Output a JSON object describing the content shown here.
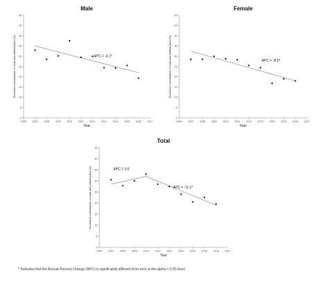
{
  "chart_data": [
    {
      "type": "scatter",
      "title": "Male",
      "xlabel": "Year",
      "ylabel": "Excessive consumption of soda and artificial juice (%)",
      "xlim": [
        2006,
        2017
      ],
      "ylim": [
        0,
        50
      ],
      "xticks": [
        "2006",
        "2007",
        "2008",
        "2009",
        "2010",
        "2011",
        "2012",
        "2013",
        "2014",
        "2015",
        "2016",
        "2017"
      ],
      "yticks": [
        "0",
        "5",
        "10",
        "15",
        "20",
        "25",
        "30",
        "35",
        "40",
        "45",
        "50"
      ],
      "points": {
        "x": [
          2007,
          2008,
          2009,
          2010,
          2011,
          2012,
          2013,
          2014,
          2015,
          2016
        ],
        "y": [
          33.0,
          28.5,
          30.2,
          37.5,
          29.5,
          30.0,
          24.5,
          24.3,
          25.5,
          19.3
        ]
      },
      "trend": {
        "x": [
          2007,
          2016
        ],
        "y": [
          35.0,
          22.0
        ]
      },
      "annotations": [
        {
          "text": "APC = -6.1*",
          "x": 2012.1,
          "y": 29.6
        }
      ],
      "grid": false
    },
    {
      "type": "scatter",
      "title": "Female",
      "xlabel": "Year",
      "ylabel": "Excessive consumption of soda and artificial juice (%)",
      "xlim": [
        2006,
        2017
      ],
      "ylim": [
        0,
        50
      ],
      "xticks": [
        "2006",
        "2007",
        "2008",
        "2009",
        "2010",
        "2011",
        "2012",
        "2013",
        "2014",
        "2015",
        "2016",
        "2017"
      ],
      "yticks": [
        "0",
        "5",
        "10",
        "15",
        "20",
        "25",
        "30",
        "35",
        "40",
        "45",
        "50"
      ],
      "points": {
        "x": [
          2007,
          2008,
          2009,
          2010,
          2011,
          2012,
          2013,
          2014,
          2015,
          2016
        ],
        "y": [
          28.5,
          28.5,
          30.0,
          28.8,
          28.3,
          25.5,
          24.5,
          16.8,
          19.0,
          18.0
        ]
      },
      "trend": {
        "x": [
          2007,
          2016
        ],
        "y": [
          32.5,
          18.0
        ]
      },
      "annotations": [
        {
          "text": "APC = -8.5*",
          "x": 2013.1,
          "y": 27.4
        }
      ],
      "grid": false
    },
    {
      "type": "scatter",
      "title": "Total",
      "xlabel": "Year",
      "ylabel": "Excessive consumption of soda and artificial juice (%)",
      "xlim": [
        2006,
        2017
      ],
      "ylim": [
        0,
        45
      ],
      "xticks": [
        "2006",
        "2007",
        "2008",
        "2009",
        "2010",
        "2011",
        "2012",
        "2013",
        "2014",
        "2015",
        "2016",
        "2017"
      ],
      "yticks": [
        "0",
        "5",
        "10",
        "15",
        "20",
        "25",
        "30",
        "35",
        "40",
        "45"
      ],
      "points": {
        "x": [
          2007,
          2008,
          2009,
          2010,
          2011,
          2012,
          2013,
          2014,
          2015,
          2016
        ],
        "y": [
          30.5,
          27.8,
          30.0,
          33.0,
          28.5,
          27.5,
          24.0,
          20.5,
          22.5,
          19.5
        ]
      },
      "trend": {
        "x": [
          2007,
          2010,
          2016
        ],
        "y": [
          28.5,
          32.0,
          19.0
        ]
      },
      "annotations": [
        {
          "text": "APC = 3.6",
          "x": 2007.2,
          "y": 34.8
        },
        {
          "text": "APC = -11.1*",
          "x": 2012.3,
          "y": 26.6
        }
      ],
      "grid": false
    }
  ],
  "footnote": "^ Indicates that the Annual Percent Change (APC) is significantly different from zero at the alpha = 0.05 level.",
  "colors": {
    "points": "#000000",
    "trend": "#999999",
    "axis": "#888888"
  }
}
